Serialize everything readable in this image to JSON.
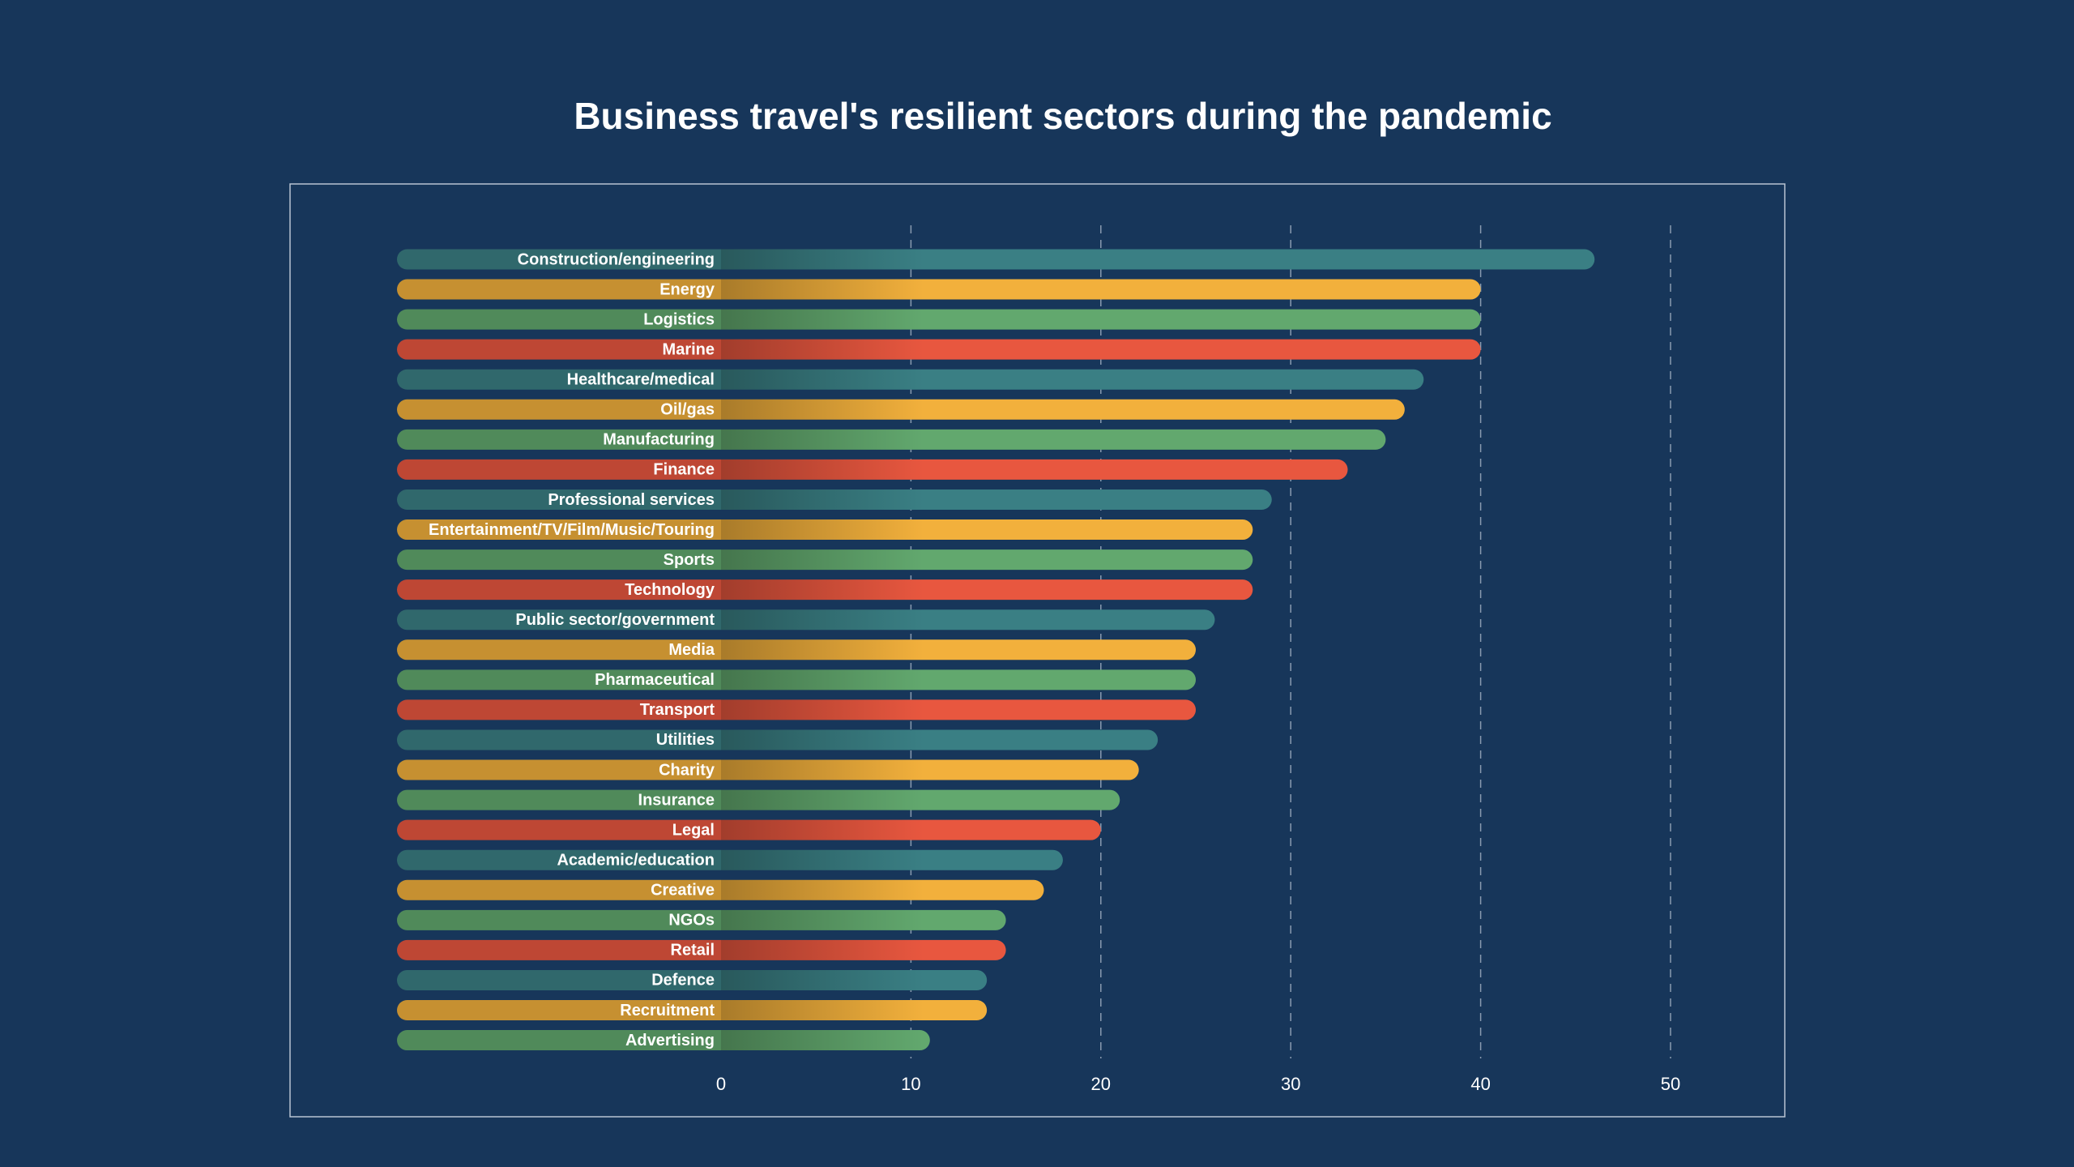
{
  "chart_data": {
    "type": "hbar",
    "title": "Business travel's resilient sectors during the pandemic",
    "categories": [
      "Construction/engineering",
      "Energy",
      "Logistics",
      "Marine",
      "Healthcare/medical",
      "Oil/gas",
      "Manufacturing",
      "Finance",
      "Professional services",
      "Entertainment/TV/Film/Music/Touring",
      "Sports",
      "Technology",
      "Public sector/government",
      "Media",
      "Pharmaceutical",
      "Transport",
      "Utilities",
      "Charity",
      "Insurance",
      "Legal",
      "Academic/education",
      "Creative",
      "NGOs",
      "Retail",
      "Defence",
      "Recruitment",
      "Advertising"
    ],
    "values": [
      46,
      40,
      40,
      40,
      37,
      36,
      35,
      33,
      29,
      28,
      28,
      28,
      26,
      25,
      25,
      25,
      23,
      22,
      21,
      20,
      18,
      17,
      15,
      15,
      14,
      14,
      11
    ],
    "colors": [
      "#3a7f84",
      "#f2b03c",
      "#62a86e",
      "#e8573f"
    ],
    "xlim": [
      0,
      50
    ],
    "xticks": [
      0,
      10,
      20,
      30,
      40,
      50
    ],
    "grid": true
  }
}
